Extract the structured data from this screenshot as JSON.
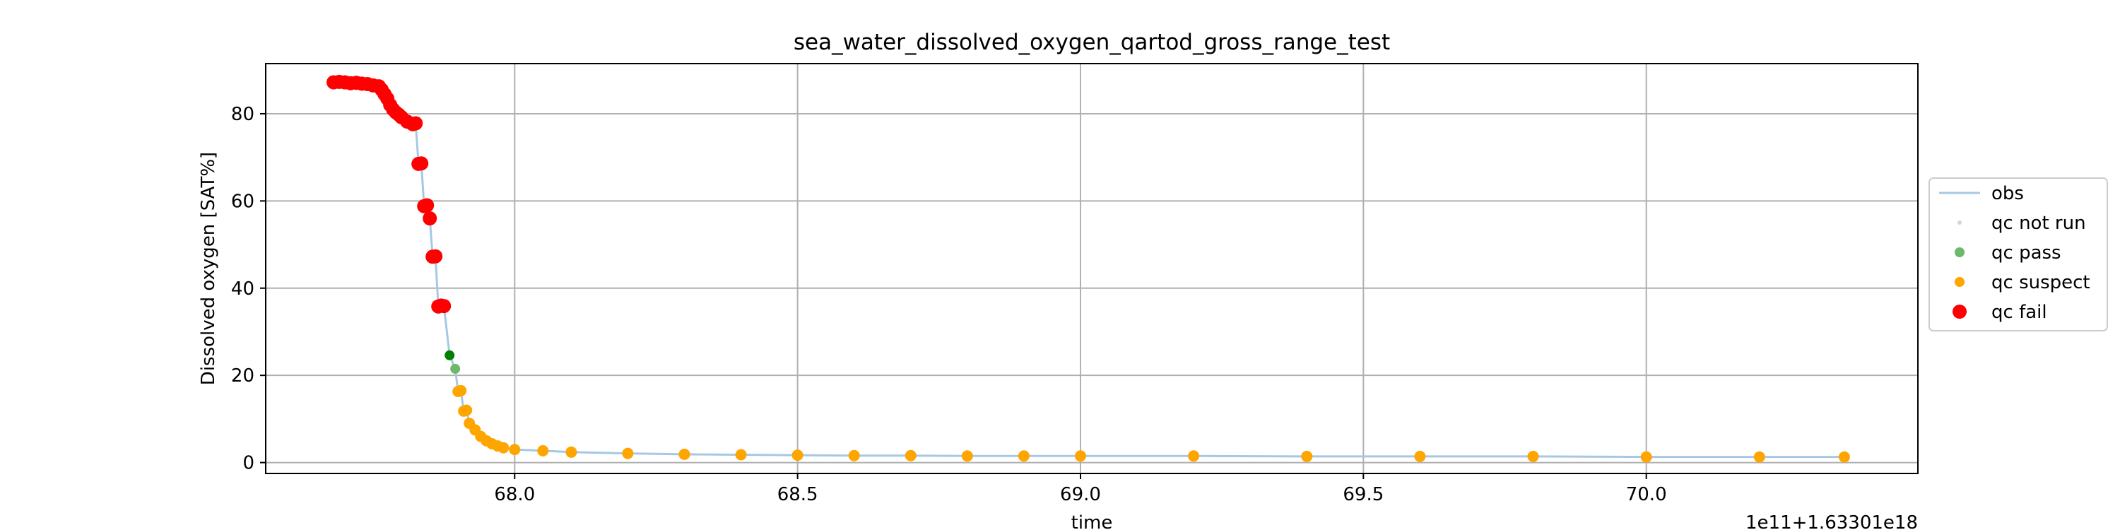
{
  "chart_data": {
    "type": "scatter",
    "title": "sea_water_dissolved_oxygen_qartod_gross_range_test",
    "xlabel": "time",
    "ylabel": "Dissolved oxygen [SAT%]",
    "x_offset_label": "1e11+1.63301e18",
    "xlim": [
      67.56,
      70.48
    ],
    "ylim": [
      -2.5,
      91.5
    ],
    "x_ticks": [
      68.0,
      68.5,
      69.0,
      69.5,
      70.0
    ],
    "x_tick_labels": [
      "68.0",
      "68.5",
      "69.0",
      "69.5",
      "70.0"
    ],
    "y_ticks": [
      0,
      20,
      40,
      60,
      80
    ],
    "y_tick_labels": [
      "0",
      "20",
      "40",
      "60",
      "80"
    ],
    "grid": true,
    "legend_position": "right, outside plot",
    "legend": [
      "obs",
      "qc not run",
      "qc pass",
      "qc suspect",
      "qc fail"
    ],
    "colors": {
      "obs": "#a6c8e4",
      "qc_not_run": "#d3d3d3",
      "qc_pass_light": "#6cb86c",
      "qc_pass_dark": "#008000",
      "qc_suspect": "#ffa500",
      "qc_fail": "#ff0000"
    },
    "series": [
      {
        "name": "qc fail",
        "x": [
          67.68,
          67.69,
          67.7,
          67.71,
          67.72,
          67.73,
          67.74,
          67.75,
          67.76,
          67.765,
          67.77,
          67.775,
          67.78,
          67.785,
          67.79,
          67.795,
          67.8,
          67.81,
          67.82,
          67.825,
          67.83,
          67.835,
          67.84,
          67.845,
          67.85,
          67.855,
          67.86,
          67.865,
          67.87,
          67.875
        ],
        "y": [
          87.2,
          87.3,
          87.2,
          87.0,
          87.1,
          86.9,
          86.8,
          86.5,
          86.3,
          85.5,
          84.5,
          83.5,
          82.0,
          81.0,
          80.3,
          79.8,
          79.2,
          78.2,
          77.6,
          77.8,
          68.5,
          68.6,
          58.8,
          59.0,
          56.0,
          47.2,
          47.3,
          35.8,
          36.0,
          35.9
        ]
      },
      {
        "name": "qc pass",
        "x": [
          67.885,
          67.895
        ],
        "y": [
          24.6,
          21.5
        ]
      },
      {
        "name": "qc suspect",
        "x": [
          67.9,
          67.905,
          67.91,
          67.915,
          67.92,
          67.93,
          67.94,
          67.95,
          67.96,
          67.97,
          67.98,
          68.0,
          68.05,
          68.1,
          68.2,
          68.3,
          68.4,
          68.5,
          68.6,
          68.7,
          68.8,
          68.9,
          69.0,
          69.2,
          69.4,
          69.6,
          69.8,
          70.0,
          70.2,
          70.35
        ],
        "y": [
          16.3,
          16.5,
          11.8,
          12.0,
          9.0,
          7.5,
          6.0,
          5.0,
          4.3,
          3.8,
          3.4,
          3.0,
          2.7,
          2.4,
          2.1,
          1.9,
          1.8,
          1.7,
          1.6,
          1.6,
          1.5,
          1.5,
          1.5,
          1.5,
          1.4,
          1.4,
          1.4,
          1.3,
          1.3,
          1.3
        ]
      }
    ]
  }
}
